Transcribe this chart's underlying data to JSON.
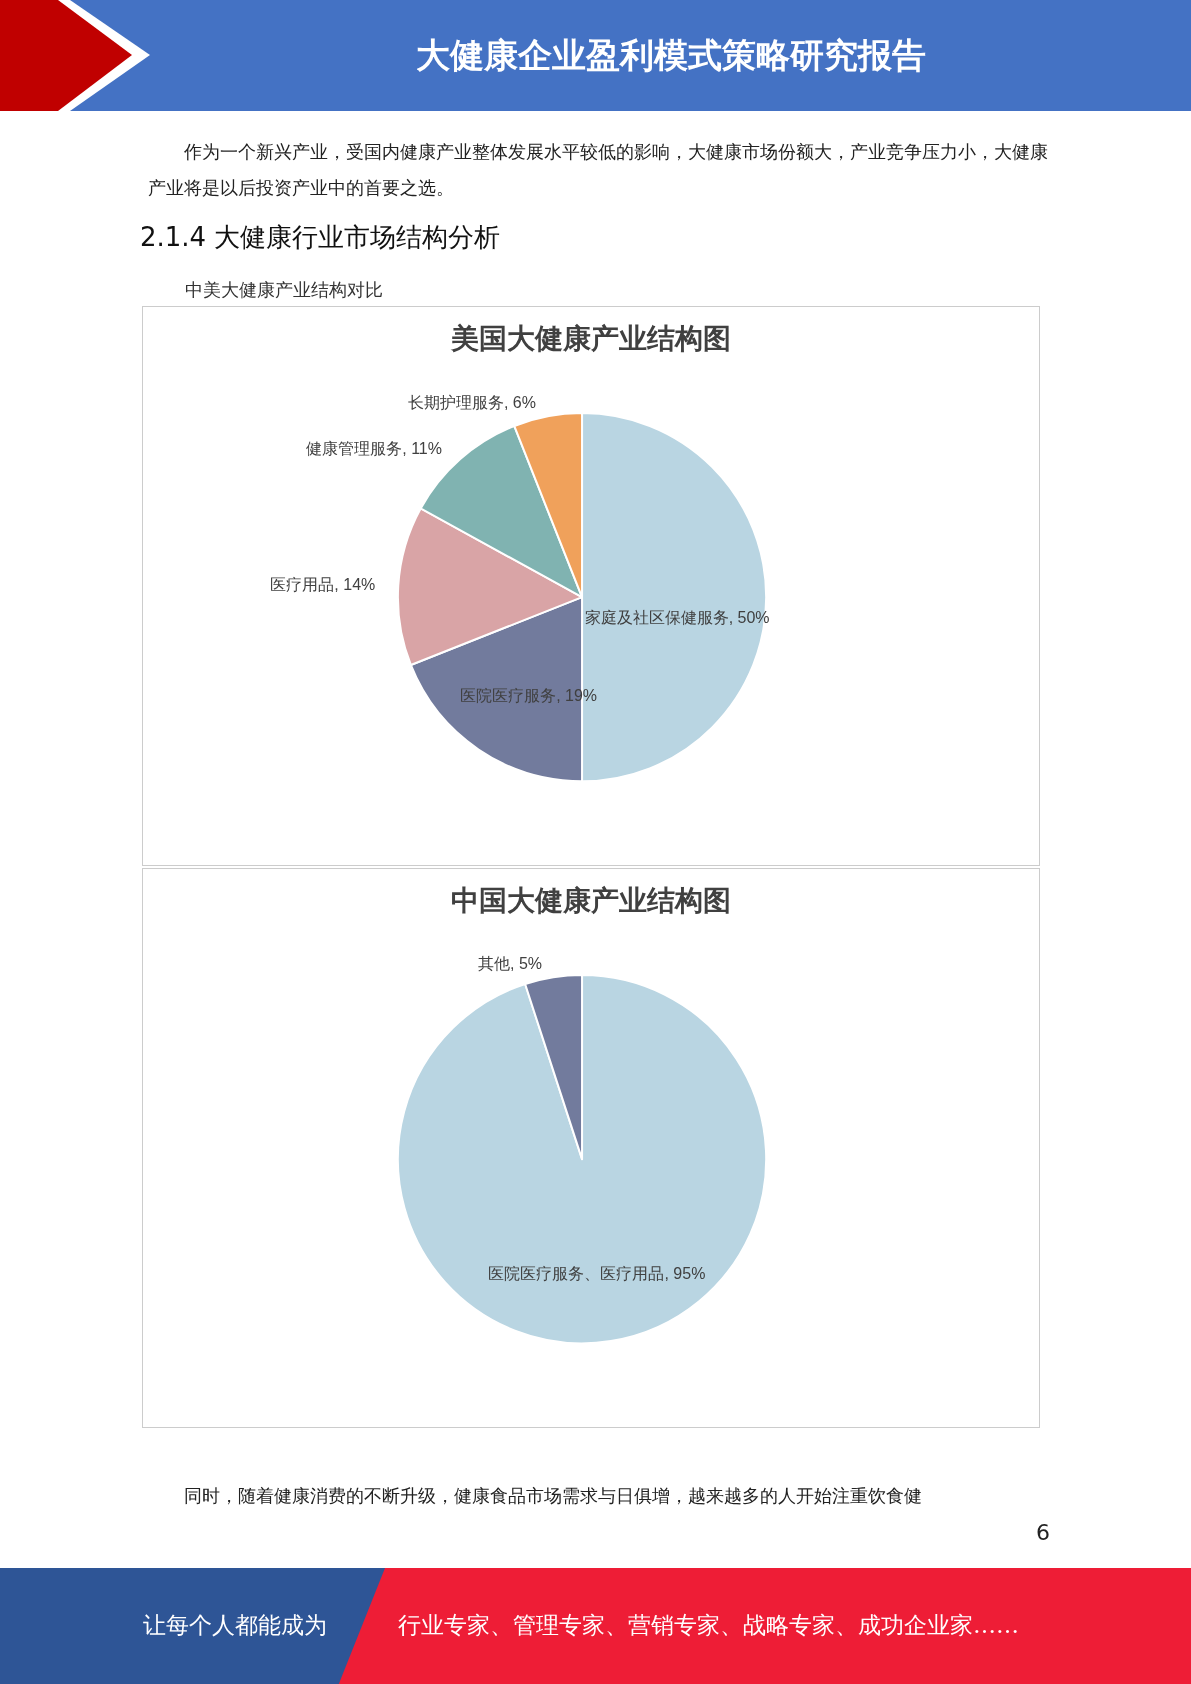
{
  "chart_data": [
    {
      "type": "pie",
      "title": "美国大健康产业结构图",
      "categories": [
        "家庭及社区保健服务",
        "医院医疗服务",
        "医疗用品",
        "健康管理服务",
        "长期护理服务"
      ],
      "values": [
        50,
        19,
        14,
        11,
        6
      ],
      "colors": [
        "#b9d5e2",
        "#727b9d",
        "#d9a4a6",
        "#80b3b1",
        "#f0a15b"
      ],
      "value_labels": [
        "50%",
        "19%",
        "14%",
        "11%",
        "6%"
      ],
      "annotations": [
        "大健康企业盈利模式策略研究报告",
        "作为一个新兴产业，受国内健康产业整体发展水平较低的影响，大健康市场份额大，产业竞争压力小，大健康产业将是以后投资产业中的首要之选。",
        "2.1.4 大健康行业市场结构分析",
        "中美大健康产业结构对比"
      ]
    },
    {
      "type": "pie",
      "title": "中国大健康产业结构图",
      "categories": [
        "医院医疗服务、医疗用品",
        "其他"
      ],
      "values": [
        95,
        5
      ],
      "colors": [
        "#b9d5e2",
        "#727b9d"
      ],
      "value_labels": [
        "95%",
        "5%"
      ],
      "annotations": [
        "同时，随着健康消费的不断升级，健康食品市场需求与日俱增，越来越多的人开始注重饮食健",
        "6",
        "让每个人都能成为",
        "行业专家、管理专家、营销专家、战略专家、成功企业家……"
      ]
    }
  ]
}
